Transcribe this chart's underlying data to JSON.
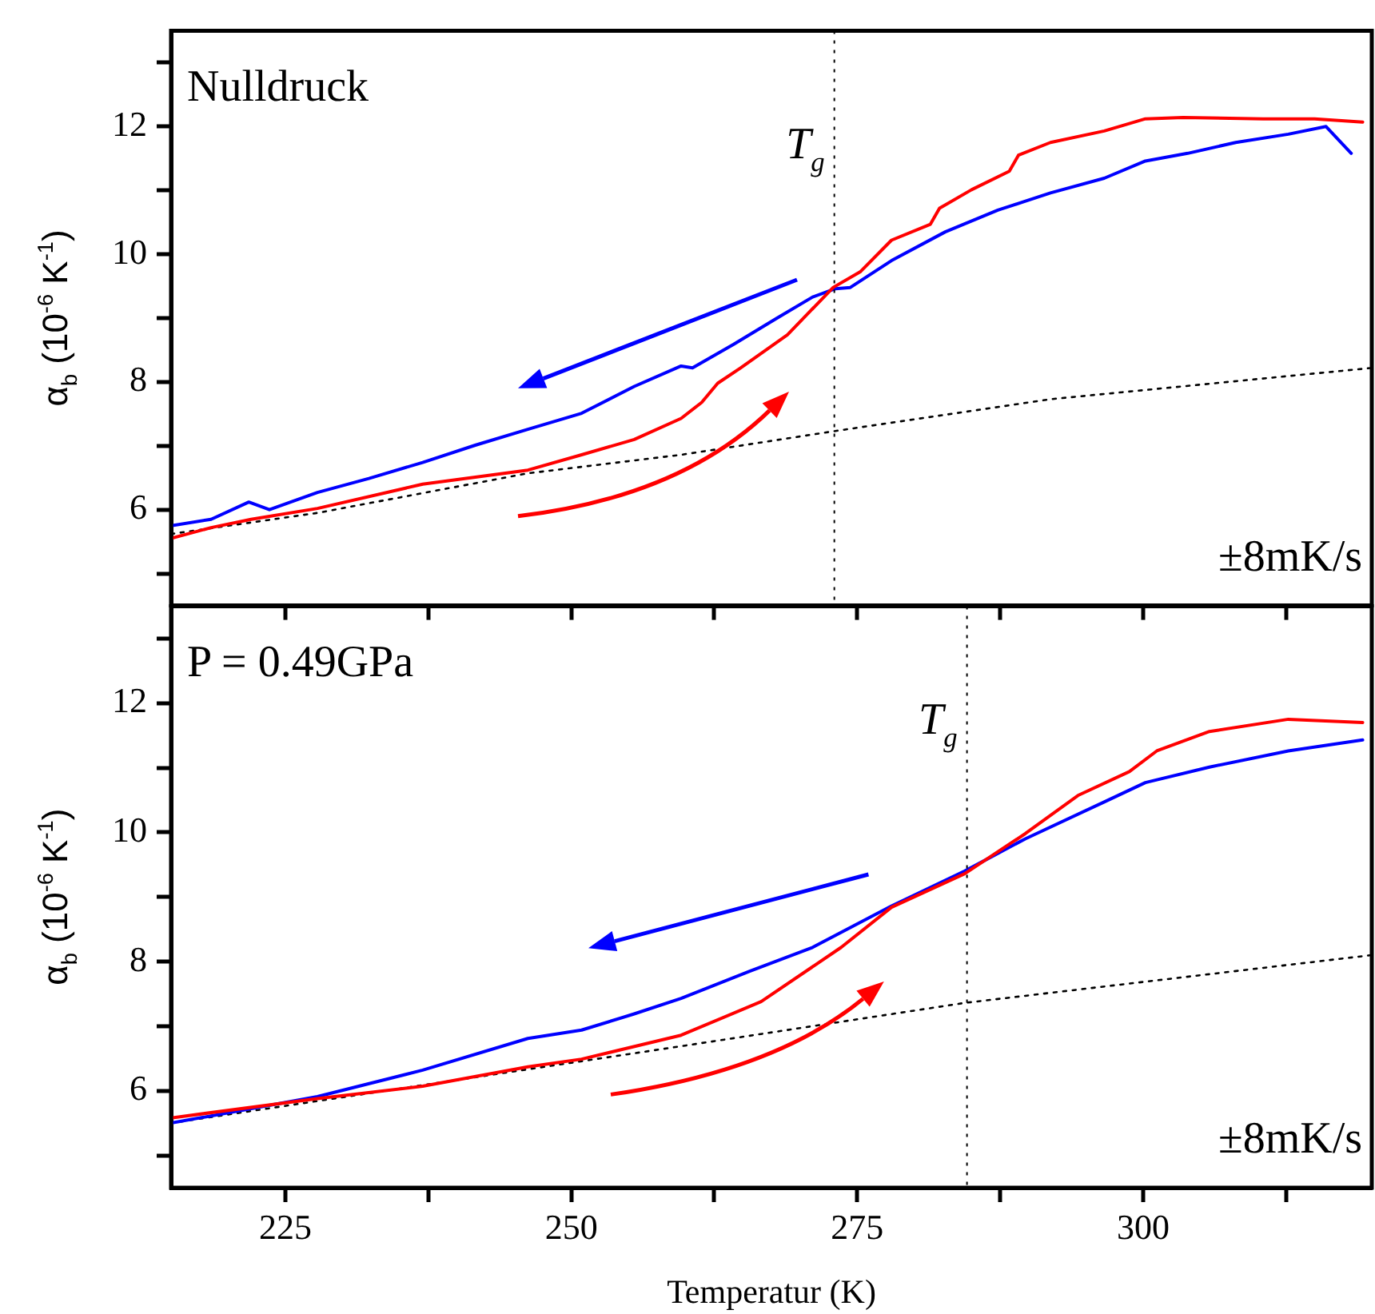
{
  "chart_data": [
    {
      "type": "line",
      "annotations": [
        "Nulldruck",
        "±8mK/s"
      ],
      "ylabel": "α$_{b}$ (10$^{-6}$ K$^{-1}$)",
      "xlim": [
        215,
        320
      ],
      "xticks": [
        {
          "value": 225,
          "label": null
        },
        {
          "value": 237.5,
          "label": null
        },
        {
          "value": 250,
          "label": null
        },
        {
          "value": 262.5,
          "label": null
        },
        {
          "value": 275,
          "label": null
        },
        {
          "value": 287.5,
          "label": null
        },
        {
          "value": 300,
          "label": null
        },
        {
          "value": 312.5,
          "label": null
        }
      ],
      "ylim": [
        4.5,
        13.5
      ],
      "yticks": [
        {
          "value": 5,
          "label": null
        },
        6,
        {
          "value": 7,
          "label": null
        },
        8,
        {
          "value": 9,
          "label": null
        },
        10,
        {
          "value": 11,
          "label": null
        },
        12,
        {
          "value": 13,
          "label": null
        }
      ],
      "tick_labels": "y",
      "marker": "none",
      "ref_lines": [
        {
          "axis": "x",
          "value": 273,
          "label": "T$_{g}$",
          "color": "#000000",
          "line_style": "dotted"
        }
      ],
      "series": [
        {
          "color": "#ff0000",
          "x": [
            215,
            218.5,
            222,
            227.8,
            237,
            246.2,
            250.9,
            255.5,
            259.6,
            261.4,
            262.8,
            264.8,
            268.9,
            272.9,
            275.3,
            278,
            281.4,
            282.2,
            285,
            288.3,
            289.1,
            291.9,
            296.6,
            300.2,
            303.5,
            310.5,
            315,
            319.2
          ],
          "values": [
            5.55,
            5.72,
            5.85,
            6.02,
            6.4,
            6.62,
            6.86,
            7.1,
            7.43,
            7.68,
            7.98,
            8.22,
            8.74,
            9.48,
            9.73,
            10.22,
            10.47,
            10.72,
            11.01,
            11.3,
            11.55,
            11.75,
            11.93,
            12.12,
            12.14,
            12.12,
            12.12,
            12.07
          ]
        },
        {
          "color": "#0000ff",
          "x": [
            215,
            218.5,
            221.8,
            223.6,
            227.8,
            232.3,
            237,
            241.6,
            246.2,
            250.9,
            255.5,
            259.6,
            260.6,
            264.2,
            267.9,
            271.1,
            273.1,
            274.4,
            278,
            282.7,
            287.3,
            291.9,
            296.6,
            300.2,
            303.9,
            308.1,
            312.7,
            316,
            318.2
          ],
          "values": [
            5.75,
            5.85,
            6.12,
            6.0,
            6.27,
            6.49,
            6.74,
            7.01,
            7.26,
            7.51,
            7.93,
            8.25,
            8.22,
            8.59,
            8.99,
            9.33,
            9.46,
            9.48,
            9.9,
            10.35,
            10.69,
            10.96,
            11.19,
            11.46,
            11.58,
            11.75,
            11.88,
            12.0,
            11.58
          ]
        },
        {
          "color": "#000000",
          "line_style": "dotted",
          "x": [
            215,
            227.8,
            246.2,
            259.6,
            273,
            291.9,
            320
          ],
          "values": [
            5.62,
            5.95,
            6.57,
            6.86,
            7.23,
            7.73,
            8.22
          ]
        }
      ]
    },
    {
      "type": "line",
      "annotations": [
        "P = 0.49GPa",
        "±8mK/s"
      ],
      "xlabel": "Temperatur (K)",
      "ylabel": "α$_{b}$ (10$^{-6}$ K$^{-1}$)",
      "xlim": [
        215,
        320
      ],
      "xticks": [
        {
          "value": 225,
          "label": "225"
        },
        {
          "value": 237.5,
          "label": null
        },
        {
          "value": 250,
          "label": "250"
        },
        {
          "value": 262.5,
          "label": null
        },
        {
          "value": 275,
          "label": "275"
        },
        {
          "value": 287.5,
          "label": null
        },
        {
          "value": 300,
          "label": "300"
        },
        {
          "value": 312.5,
          "label": null
        }
      ],
      "ylim": [
        4.5,
        13.5
      ],
      "yticks": [
        {
          "value": 5,
          "label": null
        },
        6,
        {
          "value": 7,
          "label": null
        },
        8,
        {
          "value": 9,
          "label": null
        },
        10,
        {
          "value": 11,
          "label": null
        },
        12,
        {
          "value": 13,
          "label": null
        }
      ],
      "marker": "none",
      "ref_lines": [
        {
          "axis": "x",
          "value": 284.6,
          "label": "T$_{g}$",
          "color": "#000000",
          "line_style": "dotted"
        }
      ],
      "series": [
        {
          "color": "#ff0000",
          "x": [
            215,
            227.8,
            237,
            246.2,
            250.9,
            259.6,
            266.6,
            273.6,
            278,
            284.4,
            289.7,
            294.3,
            298.8,
            301.2,
            305.8,
            312.7,
            319.2
          ],
          "values": [
            5.58,
            5.88,
            6.07,
            6.37,
            6.49,
            6.86,
            7.38,
            8.22,
            8.84,
            9.36,
            9.98,
            10.57,
            10.94,
            11.26,
            11.56,
            11.75,
            11.7
          ]
        },
        {
          "color": "#0000ff",
          "x": [
            215,
            227.8,
            237,
            246.2,
            250.9,
            255.5,
            259.6,
            265.6,
            271.1,
            278,
            284.4,
            289.7,
            296.6,
            300.2,
            305.8,
            312.7,
            319.2
          ],
          "values": [
            5.5,
            5.91,
            6.32,
            6.81,
            6.94,
            7.19,
            7.43,
            7.85,
            8.22,
            8.86,
            9.4,
            9.9,
            10.47,
            10.77,
            11.01,
            11.26,
            11.43
          ]
        },
        {
          "color": "#000000",
          "line_style": "dotted",
          "x": [
            215,
            259.6,
            284.4,
            320
          ],
          "values": [
            5.5,
            6.69,
            7.36,
            8.1
          ]
        }
      ]
    }
  ]
}
